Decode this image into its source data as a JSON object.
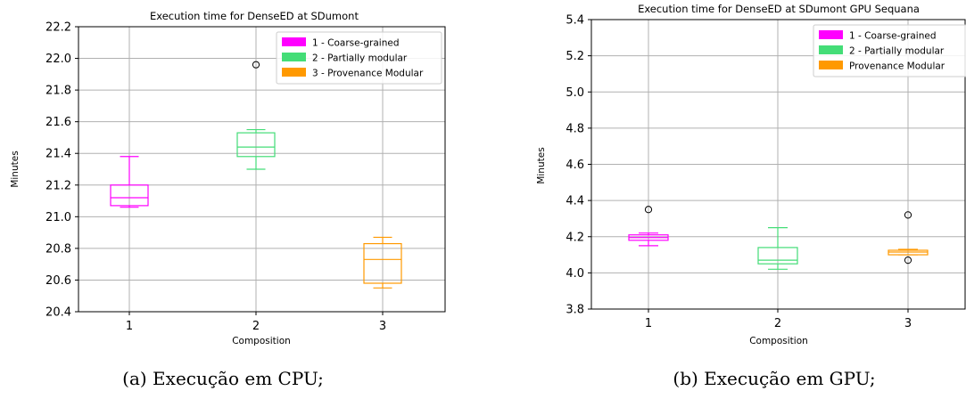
{
  "chart_data": [
    {
      "type": "box",
      "title": "Execution time for DenseED at SDumont",
      "xlabel": "Composition",
      "ylabel": "Minutes",
      "ylim": [
        20.4,
        22.2
      ],
      "yticks": [
        "20.4",
        "20.6",
        "20.8",
        "21.0",
        "21.2",
        "21.4",
        "21.6",
        "21.8",
        "22.0",
        "22.2"
      ],
      "categories": [
        "1",
        "2",
        "3"
      ],
      "grid": true,
      "legend_position": "top-right",
      "caption": "(a) Execução em CPU;",
      "series": [
        {
          "name": "1 - Coarse-grained",
          "color": "#ff00ff",
          "category": "1",
          "min": 21.06,
          "q1": 21.07,
          "median": 21.12,
          "q3": 21.2,
          "max": 21.38,
          "outliers": []
        },
        {
          "name": "2 - Partially modular",
          "color": "#44dd77",
          "category": "2",
          "min": 21.3,
          "q1": 21.38,
          "median": 21.44,
          "q3": 21.53,
          "max": 21.55,
          "outliers": [
            21.96
          ]
        },
        {
          "name": "3 - Provenance Modular",
          "color": "#ff9900",
          "category": "3",
          "min": 20.55,
          "q1": 20.58,
          "median": 20.73,
          "q3": 20.83,
          "max": 20.87,
          "outliers": []
        }
      ]
    },
    {
      "type": "box",
      "title": "Execution time for DenseED at SDumont GPU Sequana",
      "xlabel": "Composition",
      "ylabel": "Minutes",
      "ylim": [
        3.8,
        5.4
      ],
      "yticks": [
        "3.8",
        "4.0",
        "4.2",
        "4.4",
        "4.6",
        "4.8",
        "5.0",
        "5.2",
        "5.4"
      ],
      "categories": [
        "1",
        "2",
        "3"
      ],
      "grid": true,
      "legend_position": "top-right",
      "caption": "(b) Execução em GPU;",
      "series": [
        {
          "name": "1 - Coarse-grained",
          "color": "#ff00ff",
          "category": "1",
          "min": 4.15,
          "q1": 4.18,
          "median": 4.195,
          "q3": 4.21,
          "max": 4.22,
          "outliers": [
            4.35
          ]
        },
        {
          "name": "2 - Partially modular",
          "color": "#44dd77",
          "category": "2",
          "min": 4.02,
          "q1": 4.05,
          "median": 4.07,
          "q3": 4.14,
          "max": 4.25,
          "outliers": []
        },
        {
          "name": "Provenance Modular",
          "color": "#ff9900",
          "category": "3",
          "min": 4.1,
          "q1": 4.1,
          "median": 4.115,
          "q3": 4.125,
          "max": 4.13,
          "outliers": [
            4.32,
            4.07
          ]
        }
      ]
    }
  ]
}
